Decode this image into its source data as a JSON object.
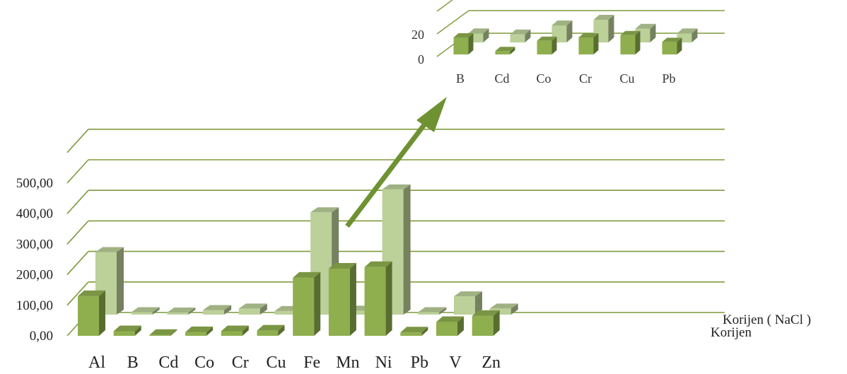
{
  "chart_data": [
    {
      "type": "bar",
      "subtype": "3d-clustered",
      "categories": [
        "Al",
        "B",
        "Cd",
        "Co",
        "Cr",
        "Cu",
        "Fe",
        "Mn",
        "Ni",
        "Pb",
        "V",
        "Zn"
      ],
      "series": [
        {
          "name": "Korijen",
          "values": [
            130,
            15,
            3,
            12,
            15,
            17,
            190,
            220,
            225,
            11,
            45,
            65
          ]
        },
        {
          "name": "Korijen ( NaCl )",
          "values": [
            205,
            8,
            7,
            15,
            20,
            12,
            335,
            13,
            410,
            8,
            60,
            20
          ]
        }
      ],
      "yticks": [
        "0,00",
        "100,00",
        "200,00",
        "300,00",
        "400,00",
        "500,00"
      ],
      "ylim": [
        0,
        500
      ],
      "grid": true,
      "colors": {
        "Korijen": "#8faf4f",
        "Korijen ( NaCl )": "#bcd09a",
        "grid": "#7f9a3c"
      }
    },
    {
      "type": "bar",
      "subtype": "3d-clustered-inset",
      "categories": [
        "B",
        "Cd",
        "Co",
        "Cr",
        "Cu",
        "Pb"
      ],
      "series": [
        {
          "name": "Korijen",
          "values": [
            15,
            3,
            12,
            15,
            17,
            11
          ]
        },
        {
          "name": "Korijen ( NaCl )",
          "values": [
            8,
            7,
            15,
            20,
            12,
            8
          ]
        }
      ],
      "yticks": [
        "0",
        "20"
      ],
      "ylim": [
        0,
        40
      ],
      "grid": true
    }
  ],
  "arrow_color": "#6e9232"
}
